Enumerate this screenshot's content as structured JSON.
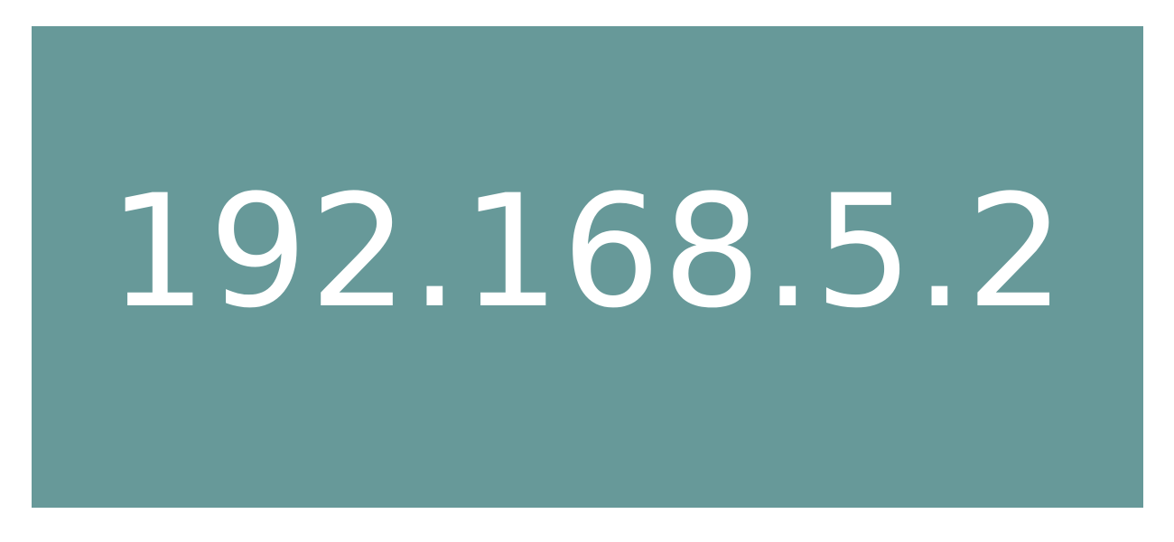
{
  "display": {
    "ip_address": "192.168.5.2"
  },
  "colors": {
    "page_background": "#ffffff",
    "panel_background": "#679999",
    "text": "#ffffff"
  }
}
